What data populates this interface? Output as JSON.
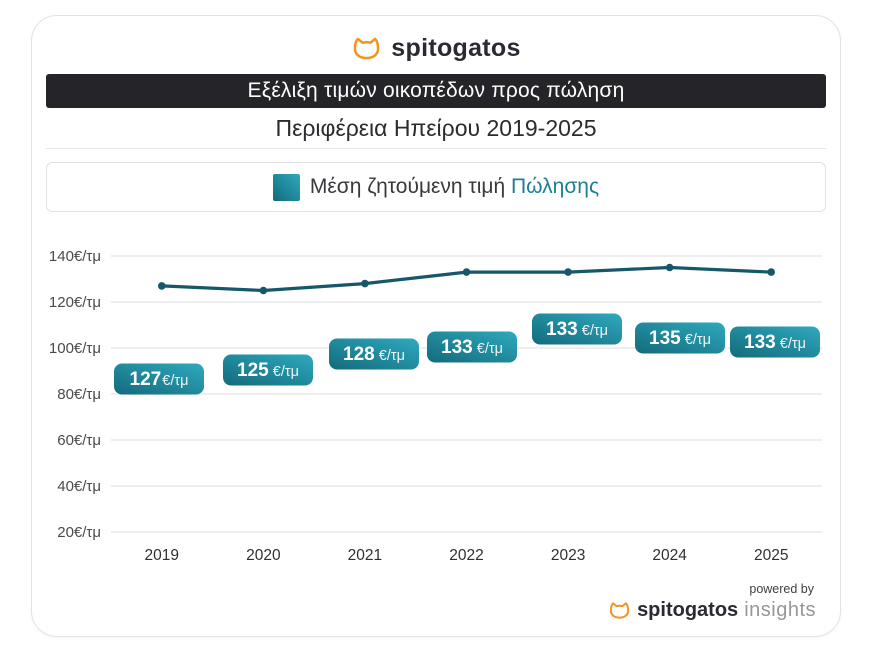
{
  "brand": {
    "logo_text": "spitogatos",
    "orange": "#F7941D"
  },
  "header": {
    "title": "Εξέλιξη τιμών οικοπέδων προς πώληση",
    "subtitle": "Περιφέρεια Ηπείρου 2019-2025"
  },
  "legend": {
    "label": "Μέση ζητούμενη τιμή",
    "highlight": "Πώλησης"
  },
  "chart_data": {
    "type": "line",
    "title": "Εξέλιξη τιμών οικοπέδων προς πώληση",
    "subtitle": "Περιφέρεια Ηπείρου 2019-2025",
    "series_name": "Μέση ζητούμενη τιμή Πώλησης",
    "categories": [
      "2019",
      "2020",
      "2021",
      "2022",
      "2023",
      "2024",
      "2025"
    ],
    "values": [
      127,
      125,
      128,
      133,
      133,
      135,
      133
    ],
    "unit": "€/τμ",
    "point_labels": [
      "127€/τμ",
      "125 €/τμ",
      "128 €/τμ",
      "133 €/τμ",
      "133 €/τμ",
      "135 €/τμ",
      "133 €/τμ"
    ],
    "yticks": [
      {
        "value": 140,
        "label": "140€/τμ"
      },
      {
        "value": 120,
        "label": "120€/τμ"
      },
      {
        "value": 100,
        "label": "100€/τμ"
      },
      {
        "value": 80,
        "label": "80€/τμ"
      },
      {
        "value": 60,
        "label": "60€/τμ"
      },
      {
        "value": 40,
        "label": "40€/τμ"
      },
      {
        "value": 20,
        "label": "20€/τμ"
      }
    ],
    "ylim": [
      20,
      140
    ],
    "grid": true,
    "legend_position": "top",
    "line_color": "#17576A",
    "badge_gradient": [
      "#136B7C",
      "#2FA9BE"
    ]
  },
  "footer": {
    "powered_by": "powered by",
    "logo_text": "spitogatos",
    "insights_text": "insights"
  }
}
